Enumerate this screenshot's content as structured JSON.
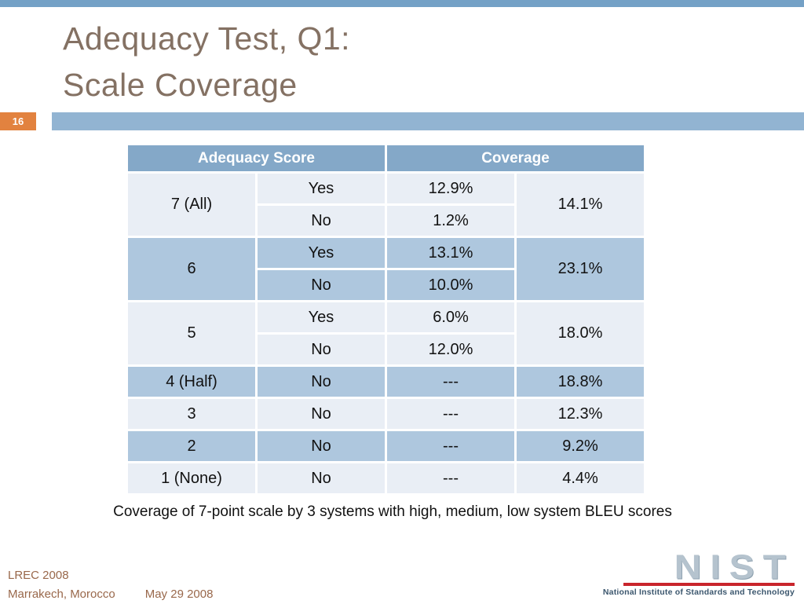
{
  "slide": {
    "page_number": "16",
    "title_line1": "Adequacy Test, Q1:",
    "title_line2": "Scale Coverage",
    "caption": "Coverage of 7-point scale by 3 systems with high, medium, low system BLEU scores",
    "footer": {
      "conference": "LREC 2008",
      "location": "Marrakech, Morocco",
      "date": "May 29 2008"
    },
    "logo": {
      "wordmark": "NIST",
      "tagline": "National Institute of Standards and Technology"
    }
  },
  "table": {
    "headers": [
      "Adequacy Score",
      "Coverage"
    ],
    "groups": [
      {
        "score": "7 (All)",
        "shade": "light",
        "rows": [
          {
            "answer": "Yes",
            "pct": "12.9%"
          },
          {
            "answer": "No",
            "pct": "1.2%"
          }
        ],
        "total": "14.1%"
      },
      {
        "score": "6",
        "shade": "medium",
        "rows": [
          {
            "answer": "Yes",
            "pct": "13.1%"
          },
          {
            "answer": "No",
            "pct": "10.0%"
          }
        ],
        "total": "23.1%"
      },
      {
        "score": "5",
        "shade": "light",
        "rows": [
          {
            "answer": "Yes",
            "pct": "6.0%"
          },
          {
            "answer": "No",
            "pct": "12.0%"
          }
        ],
        "total": "18.0%"
      },
      {
        "score": "4 (Half)",
        "shade": "medium",
        "rows": [
          {
            "answer": "No",
            "pct": "---"
          }
        ],
        "total": "18.8%"
      },
      {
        "score": "3",
        "shade": "light",
        "rows": [
          {
            "answer": "No",
            "pct": "---"
          }
        ],
        "total": "12.3%"
      },
      {
        "score": "2",
        "shade": "medium",
        "rows": [
          {
            "answer": "No",
            "pct": "---"
          }
        ],
        "total": "9.2%"
      },
      {
        "score": "1 (None)",
        "shade": "light",
        "rows": [
          {
            "answer": "No",
            "pct": "---"
          }
        ],
        "total": "4.4%"
      }
    ]
  },
  "colors": {
    "top_bar": "#74A1C6",
    "accent_bar": "#92B4D2",
    "page_box": "#E2823F",
    "header_bg": "#84A8C8",
    "row_light": "#E9EEF5",
    "row_medium": "#AEC7DE",
    "title_text": "#847163",
    "footer_text": "#99684B",
    "nist_wordmark": "#B5C3CE",
    "nist_red": "#C9252C",
    "nist_tagline": "#3C576E"
  }
}
